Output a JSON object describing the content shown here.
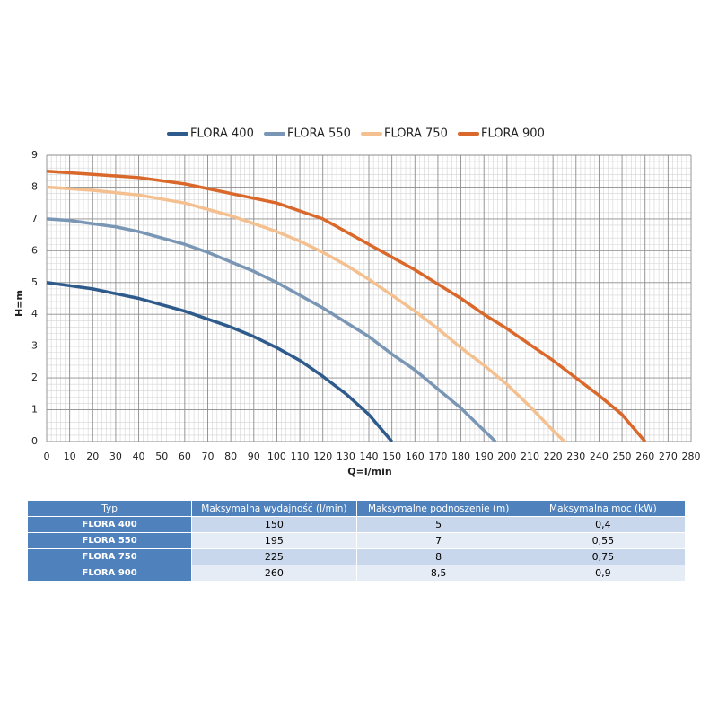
{
  "chart_data": {
    "type": "line",
    "xlabel": "Q=l/min",
    "ylabel": "H=m",
    "xlim": [
      0,
      280
    ],
    "ylim": [
      0,
      9
    ],
    "xticks": [
      0,
      10,
      20,
      30,
      40,
      50,
      60,
      70,
      80,
      90,
      100,
      110,
      120,
      130,
      140,
      150,
      160,
      170,
      180,
      190,
      200,
      210,
      220,
      230,
      240,
      250,
      260,
      270,
      280
    ],
    "yticks": [
      0,
      1,
      2,
      3,
      4,
      5,
      6,
      7,
      8,
      9
    ],
    "grid": true,
    "minor_grid": true,
    "legend": "top",
    "series": [
      {
        "name": "FLORA 400",
        "color": "#2e5a8c",
        "x": [
          0,
          10,
          20,
          30,
          40,
          50,
          60,
          70,
          80,
          90,
          100,
          110,
          120,
          130,
          140,
          150
        ],
        "values": [
          5,
          4.9,
          4.8,
          4.65,
          4.5,
          4.3,
          4.1,
          3.85,
          3.6,
          3.3,
          2.95,
          2.55,
          2.05,
          1.5,
          0.85,
          0
        ]
      },
      {
        "name": "FLORA 550",
        "color": "#7a96b5",
        "x": [
          0,
          10,
          20,
          30,
          40,
          50,
          60,
          70,
          80,
          90,
          100,
          110,
          120,
          130,
          140,
          150,
          160,
          170,
          180,
          190,
          195
        ],
        "values": [
          7,
          6.95,
          6.85,
          6.75,
          6.6,
          6.4,
          6.2,
          5.95,
          5.65,
          5.35,
          5,
          4.6,
          4.2,
          3.75,
          3.3,
          2.75,
          2.25,
          1.65,
          1.05,
          0.35,
          0
        ]
      },
      {
        "name": "FLORA 750",
        "color": "#f5c08f",
        "x": [
          0,
          20,
          40,
          60,
          80,
          90,
          100,
          110,
          120,
          130,
          140,
          150,
          160,
          170,
          180,
          190,
          200,
          210,
          220,
          225
        ],
        "values": [
          8,
          7.9,
          7.75,
          7.5,
          7.1,
          6.85,
          6.6,
          6.3,
          5.95,
          5.55,
          5.1,
          4.6,
          4.1,
          3.55,
          2.95,
          2.4,
          1.8,
          1.1,
          0.35,
          0
        ]
      },
      {
        "name": "FLORA 900",
        "color": "#d9682a",
        "x": [
          0,
          20,
          40,
          60,
          80,
          100,
          110,
          120,
          130,
          140,
          150,
          160,
          170,
          180,
          190,
          200,
          210,
          220,
          230,
          240,
          250,
          260
        ],
        "values": [
          8.5,
          8.4,
          8.3,
          8.1,
          7.8,
          7.5,
          7.25,
          7,
          6.6,
          6.2,
          5.8,
          5.4,
          4.95,
          4.5,
          4,
          3.55,
          3.05,
          2.55,
          2,
          1.45,
          0.85,
          0
        ]
      }
    ]
  },
  "table": {
    "header": [
      "Typ",
      "Maksymalna wydajność (l/min)",
      "Maksymalne podnoszenie (m)",
      "Maksymalna moc (kW)"
    ],
    "rows": [
      [
        "FLORA 400",
        "150",
        "5",
        "0,4"
      ],
      [
        "FLORA 550",
        "195",
        "7",
        "0,55"
      ],
      [
        "FLORA 750",
        "225",
        "8",
        "0,75"
      ],
      [
        "FLORA 900",
        "260",
        "8,5",
        "0,9"
      ]
    ]
  }
}
